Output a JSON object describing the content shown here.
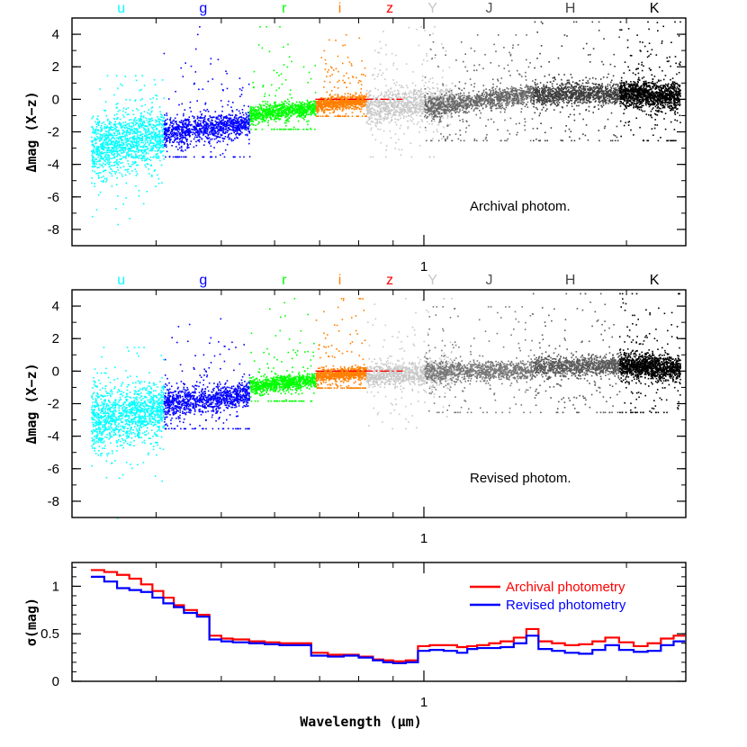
{
  "chart_data": [
    {
      "type": "scatter",
      "panel": "archival",
      "ylabel": "Δmag (X−z)",
      "annotation": "Archival photom.",
      "xscale": "log",
      "xlim": [
        0.3,
        2.45
      ],
      "ylim": [
        -9,
        5
      ],
      "yticks": [
        4,
        2,
        0,
        -2,
        -4,
        -6,
        -8
      ],
      "ytick_labels": [
        "4",
        "2",
        "0",
        "-2",
        "-4",
        "-6",
        "-8"
      ],
      "xtick_labels": [
        {
          "value": 1,
          "label": "1"
        }
      ],
      "bands": [
        {
          "name": "u",
          "color": "#00ffff",
          "wl": 0.355
        },
        {
          "name": "g",
          "color": "#0000ff",
          "wl": 0.47
        },
        {
          "name": "r",
          "color": "#00ff00",
          "wl": 0.62
        },
        {
          "name": "i",
          "color": "#ff7f00",
          "wl": 0.75
        },
        {
          "name": "z",
          "color": "#ff0000",
          "wl": 0.89
        },
        {
          "name": "Y",
          "color": "#c8c8c8",
          "wl": 1.03
        },
        {
          "name": "J",
          "color": "#555555",
          "wl": 1.25
        },
        {
          "name": "H",
          "color": "#444444",
          "wl": 1.65
        },
        {
          "name": "K",
          "color": "#000000",
          "wl": 2.2
        }
      ],
      "series": [
        {
          "name": "u",
          "color": "#00ffff",
          "wl_range": [
            0.32,
            0.41
          ],
          "center": [
            -3.0,
            -2.2
          ],
          "spread": [
            1.0,
            0.7
          ],
          "tail": [
            -9,
            1.5
          ],
          "n": 1300
        },
        {
          "name": "g",
          "color": "#0000ff",
          "wl_range": [
            0.41,
            0.55
          ],
          "center": [
            -2.0,
            -1.4
          ],
          "spread": [
            0.45,
            0.35
          ],
          "tail": [
            -3.5,
            4.5
          ],
          "n": 1100
        },
        {
          "name": "r",
          "color": "#00ff00",
          "wl_range": [
            0.55,
            0.69
          ],
          "center": [
            -0.9,
            -0.5
          ],
          "spread": [
            0.25,
            0.22
          ],
          "tail": [
            -1.8,
            4.5
          ],
          "n": 900
        },
        {
          "name": "i",
          "color": "#ff7f00",
          "wl_range": [
            0.69,
            0.82
          ],
          "center": [
            -0.3,
            -0.05
          ],
          "spread": [
            0.2,
            0.2
          ],
          "tail": [
            -1.0,
            4.5
          ],
          "n": 850
        },
        {
          "name": "Y",
          "color": "#c8c8c8",
          "wl_range": [
            0.82,
            1.1
          ],
          "center": [
            -0.5,
            -0.1
          ],
          "spread": [
            0.5,
            0.5
          ],
          "tail": [
            -3.5,
            4.5
          ],
          "n": 1100
        },
        {
          "name": "J",
          "color": "#666666",
          "wl_range": [
            1.0,
            1.45
          ],
          "center": [
            -0.5,
            0.4
          ],
          "spread": [
            0.35,
            0.3
          ],
          "tail": [
            -2.5,
            4
          ],
          "n": 1200
        },
        {
          "name": "H",
          "color": "#3c3c3c",
          "wl_range": [
            1.45,
            1.95
          ],
          "center": [
            0.3,
            0.4
          ],
          "spread": [
            0.35,
            0.3
          ],
          "tail": [
            -2.5,
            4.8
          ],
          "n": 1100
        },
        {
          "name": "K",
          "color": "#000000",
          "wl_range": [
            1.95,
            2.4
          ],
          "center": [
            0.4,
            0.2
          ],
          "spread": [
            0.4,
            0.4
          ],
          "tail": [
            -2.5,
            4.8
          ],
          "n": 1300
        }
      ],
      "zero_line": {
        "color": "#ff0000",
        "wl_range": [
          0.69,
          0.93
        ],
        "y": 0
      }
    },
    {
      "type": "scatter",
      "panel": "revised",
      "ylabel": "Δmag (X−z)",
      "annotation": "Revised photom.",
      "xscale": "log",
      "xlim": [
        0.3,
        2.45
      ],
      "ylim": [
        -9,
        5
      ],
      "yticks": [
        4,
        2,
        0,
        -2,
        -4,
        -6,
        -8
      ],
      "ytick_labels": [
        "4",
        "2",
        "0",
        "-2",
        "-4",
        "-6",
        "-8"
      ],
      "xtick_labels": [
        {
          "value": 1,
          "label": "1"
        }
      ],
      "bands": [
        {
          "name": "u",
          "color": "#00ffff",
          "wl": 0.355
        },
        {
          "name": "g",
          "color": "#0000ff",
          "wl": 0.47
        },
        {
          "name": "r",
          "color": "#00ff00",
          "wl": 0.62
        },
        {
          "name": "i",
          "color": "#ff7f00",
          "wl": 0.75
        },
        {
          "name": "z",
          "color": "#ff0000",
          "wl": 0.89
        },
        {
          "name": "Y",
          "color": "#c8c8c8",
          "wl": 1.03
        },
        {
          "name": "J",
          "color": "#555555",
          "wl": 1.25
        },
        {
          "name": "H",
          "color": "#444444",
          "wl": 1.65
        },
        {
          "name": "K",
          "color": "#000000",
          "wl": 2.2
        }
      ],
      "series": [
        {
          "name": "u",
          "color": "#00ffff",
          "wl_range": [
            0.32,
            0.41
          ],
          "center": [
            -3.0,
            -2.2
          ],
          "spread": [
            1.0,
            0.7
          ],
          "tail": [
            -9,
            1.5
          ],
          "n": 1300
        },
        {
          "name": "g",
          "color": "#0000ff",
          "wl_range": [
            0.41,
            0.55
          ],
          "center": [
            -2.0,
            -1.4
          ],
          "spread": [
            0.45,
            0.35
          ],
          "tail": [
            -3.5,
            4.5
          ],
          "n": 1100
        },
        {
          "name": "r",
          "color": "#00ff00",
          "wl_range": [
            0.55,
            0.69
          ],
          "center": [
            -0.9,
            -0.5
          ],
          "spread": [
            0.25,
            0.22
          ],
          "tail": [
            -1.8,
            4.5
          ],
          "n": 900
        },
        {
          "name": "i",
          "color": "#ff7f00",
          "wl_range": [
            0.69,
            0.82
          ],
          "center": [
            -0.3,
            -0.05
          ],
          "spread": [
            0.2,
            0.2
          ],
          "tail": [
            -1.0,
            4.5
          ],
          "n": 850
        },
        {
          "name": "Y",
          "color": "#c8c8c8",
          "wl_range": [
            0.82,
            1.1
          ],
          "center": [
            -0.3,
            0.0
          ],
          "spread": [
            0.35,
            0.35
          ],
          "tail": [
            -3.5,
            4.5
          ],
          "n": 1000
        },
        {
          "name": "J",
          "color": "#777777",
          "wl_range": [
            1.0,
            1.45
          ],
          "center": [
            0.0,
            0.1
          ],
          "spread": [
            0.3,
            0.3
          ],
          "tail": [
            -2.5,
            4
          ],
          "n": 1100
        },
        {
          "name": "H",
          "color": "#5a5a5a",
          "wl_range": [
            1.45,
            1.95
          ],
          "center": [
            0.3,
            0.4
          ],
          "spread": [
            0.3,
            0.3
          ],
          "tail": [
            -2.5,
            4.8
          ],
          "n": 1100
        },
        {
          "name": "K",
          "color": "#000000",
          "wl_range": [
            1.95,
            2.4
          ],
          "center": [
            0.4,
            0.2
          ],
          "spread": [
            0.35,
            0.4
          ],
          "tail": [
            -2.5,
            4.8
          ],
          "n": 1300
        }
      ],
      "zero_line": {
        "color": "#ff0000",
        "wl_range": [
          0.69,
          0.93
        ],
        "y": 0
      }
    },
    {
      "type": "line",
      "panel": "sigma",
      "ylabel": "σ(mag)",
      "xlabel": "Wavelength (μm)",
      "xscale": "log",
      "xlim": [
        0.3,
        2.45
      ],
      "ylim": [
        0,
        1.25
      ],
      "yticks": [
        0,
        0.5,
        1
      ],
      "ytick_labels": [
        "0",
        "0.5",
        "1"
      ],
      "xtick_labels": [
        {
          "value": 1,
          "label": "1"
        }
      ],
      "legend": {
        "position": "top-right"
      },
      "x": [
        0.32,
        0.335,
        0.35,
        0.365,
        0.38,
        0.395,
        0.41,
        0.425,
        0.44,
        0.46,
        0.48,
        0.5,
        0.52,
        0.55,
        0.58,
        0.61,
        0.64,
        0.68,
        0.72,
        0.76,
        0.8,
        0.84,
        0.87,
        0.9,
        0.94,
        0.98,
        1.02,
        1.07,
        1.12,
        1.16,
        1.2,
        1.25,
        1.3,
        1.36,
        1.42,
        1.48,
        1.55,
        1.62,
        1.7,
        1.78,
        1.86,
        1.95,
        2.05,
        2.15,
        2.25,
        2.35
      ],
      "series": [
        {
          "name": "Archival photometry",
          "color": "#ff0000",
          "values": [
            1.17,
            1.15,
            1.12,
            1.08,
            1.02,
            0.95,
            0.88,
            0.8,
            0.75,
            0.7,
            0.48,
            0.45,
            0.44,
            0.42,
            0.41,
            0.4,
            0.4,
            0.3,
            0.28,
            0.28,
            0.26,
            0.23,
            0.22,
            0.21,
            0.22,
            0.37,
            0.38,
            0.38,
            0.36,
            0.37,
            0.38,
            0.4,
            0.42,
            0.46,
            0.55,
            0.42,
            0.4,
            0.38,
            0.39,
            0.42,
            0.46,
            0.41,
            0.37,
            0.4,
            0.45,
            0.48
          ]
        },
        {
          "name": "Revised photometry",
          "color": "#0000ff",
          "values": [
            1.1,
            1.05,
            0.98,
            0.96,
            0.94,
            0.88,
            0.82,
            0.78,
            0.72,
            0.68,
            0.44,
            0.42,
            0.41,
            0.4,
            0.39,
            0.38,
            0.38,
            0.27,
            0.26,
            0.27,
            0.25,
            0.22,
            0.2,
            0.19,
            0.2,
            0.32,
            0.33,
            0.32,
            0.3,
            0.34,
            0.35,
            0.35,
            0.36,
            0.4,
            0.48,
            0.34,
            0.32,
            0.3,
            0.29,
            0.33,
            0.38,
            0.33,
            0.31,
            0.32,
            0.38,
            0.42
          ]
        }
      ]
    }
  ]
}
